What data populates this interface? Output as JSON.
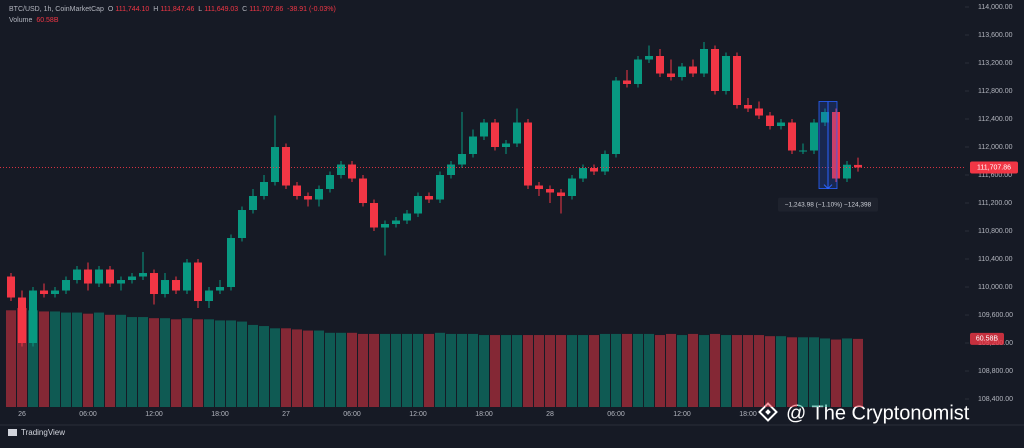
{
  "chart_data": {
    "type": "candlestick",
    "header": {
      "symbol": "BTC/USD, 1h, CoinMarketCap",
      "ohlc": [
        {
          "key": "O",
          "value": "111,744.10"
        },
        {
          "key": "H",
          "value": "111,847.46"
        },
        {
          "key": "L",
          "value": "111,649.03"
        },
        {
          "key": "C",
          "value": "111,707.86"
        }
      ],
      "change": "-38.91 (-0.03%)",
      "volume_key": "Volume",
      "volume_value": "60.58B"
    },
    "categories": [
      null,
      "26",
      null,
      null,
      null,
      null,
      null,
      "06:00",
      null,
      null,
      null,
      null,
      null,
      "12:00",
      null,
      null,
      null,
      null,
      null,
      "18:00",
      null,
      null,
      null,
      null,
      null,
      "27",
      null,
      null,
      null,
      null,
      null,
      "06:00",
      null,
      null,
      null,
      null,
      null,
      "12:00",
      null,
      null,
      null,
      null,
      null,
      "18:00",
      null,
      null,
      null,
      null,
      null,
      "28",
      null,
      null,
      null,
      null,
      null,
      "06:00",
      null,
      null,
      null,
      null,
      null,
      "12:00",
      null,
      null,
      null,
      null,
      null,
      "18:00",
      null,
      null,
      null,
      null,
      null,
      null,
      null,
      null,
      null,
      null
    ],
    "open": [
      110150,
      109850,
      109200,
      109950,
      109900,
      109950,
      110100,
      110250,
      110050,
      110250,
      110050,
      110100,
      110150,
      110200,
      109900,
      110100,
      109950,
      110350,
      109800,
      109950,
      110000,
      110700,
      111100,
      111300,
      111500,
      112000,
      111450,
      111300,
      111250,
      111400,
      111600,
      111750,
      111550,
      111200,
      110850,
      110900,
      110950,
      111050,
      111300,
      111250,
      111600,
      111750,
      111900,
      112150,
      112350,
      112000,
      112050,
      112350,
      111450,
      111400,
      111350,
      111300,
      111550,
      111700,
      111650,
      111900,
      112950,
      112900,
      113250,
      113300,
      113050,
      113000,
      113150,
      113050,
      113400,
      112800,
      113300,
      112600,
      112550,
      112450,
      112300,
      112350,
      111950,
      111950,
      112350,
      112500,
      111550,
      111744.1
    ],
    "high": [
      110200,
      109950,
      110000,
      110050,
      110000,
      110150,
      110300,
      110350,
      110300,
      110300,
      110150,
      110200,
      110500,
      110250,
      110200,
      110150,
      110400,
      110400,
      110000,
      110100,
      110750,
      111150,
      111400,
      111600,
      112450,
      112050,
      111500,
      111350,
      111450,
      111650,
      111800,
      111800,
      111600,
      111250,
      110950,
      111000,
      111100,
      111350,
      111350,
      111650,
      111800,
      112500,
      112250,
      112400,
      112400,
      112100,
      112550,
      112400,
      111500,
      111450,
      111400,
      111600,
      111750,
      111750,
      111950,
      113000,
      113100,
      113300,
      113450,
      113400,
      113250,
      113200,
      113250,
      113500,
      113450,
      113350,
      113350,
      112700,
      112650,
      112500,
      112400,
      112400,
      112050,
      112400,
      112550,
      112550,
      111800,
      111847.46
    ],
    "low": [
      109800,
      109150,
      109150,
      109850,
      109850,
      109900,
      110050,
      109950,
      110000,
      110000,
      109950,
      110050,
      110100,
      109750,
      109850,
      109900,
      109900,
      109700,
      109700,
      109900,
      109950,
      110650,
      111050,
      111250,
      111450,
      111400,
      111250,
      111150,
      111150,
      111350,
      111550,
      111500,
      111150,
      110800,
      110450,
      110850,
      110900,
      111000,
      111200,
      111200,
      111550,
      111700,
      111850,
      112100,
      111950,
      111900,
      112000,
      111400,
      111300,
      111200,
      111050,
      111250,
      111500,
      111600,
      111600,
      111850,
      112850,
      112850,
      113200,
      113000,
      112950,
      112950,
      113000,
      113000,
      112750,
      112750,
      112550,
      112500,
      112400,
      112250,
      112250,
      111900,
      111900,
      111900,
      112300,
      111500,
      111500,
      111649.03
    ],
    "close": [
      109850,
      109200,
      109950,
      109900,
      109950,
      110100,
      110250,
      110050,
      110250,
      110050,
      110100,
      110150,
      110200,
      109900,
      110100,
      109950,
      110350,
      109800,
      109950,
      110000,
      110700,
      111100,
      111300,
      111500,
      112000,
      111450,
      111300,
      111250,
      111400,
      111600,
      111750,
      111550,
      111200,
      110850,
      110900,
      110950,
      111050,
      111300,
      111250,
      111600,
      111750,
      111900,
      112150,
      112350,
      112000,
      112050,
      112350,
      111450,
      111400,
      111350,
      111300,
      111550,
      111700,
      111650,
      111900,
      112950,
      112900,
      113250,
      113300,
      113050,
      113000,
      113150,
      113050,
      113400,
      112800,
      113300,
      112600,
      112550,
      112450,
      112300,
      112350,
      111950,
      111950,
      112350,
      112500,
      111550,
      111746.77,
      111707.86
    ],
    "volume": [
      86,
      88,
      86,
      85,
      85,
      84,
      84,
      83,
      84,
      82,
      82,
      80,
      80,
      79,
      79,
      78,
      79,
      78,
      78,
      77,
      77,
      76,
      73,
      72,
      70,
      70,
      69,
      68,
      68,
      66,
      66,
      66,
      65,
      65,
      65,
      65,
      65,
      65,
      65,
      66,
      65,
      65,
      65,
      64,
      64,
      64,
      64,
      64,
      64,
      64,
      64,
      64,
      64,
      64,
      65,
      65,
      65,
      65,
      65,
      64,
      65,
      64,
      65,
      64,
      65,
      64,
      64,
      64,
      64,
      63,
      63,
      62,
      62,
      62,
      61,
      60,
      61,
      60.58
    ],
    "last_price_label": "111,707.86",
    "last_volume_label": "60.58B",
    "up_color": "#089981",
    "down_color": "#f23645",
    "ylim": [
      108286,
      114100
    ],
    "yticks": [
      {
        "value": 108400,
        "label": "108,400.00"
      },
      {
        "value": 108800,
        "label": "108,800.00"
      },
      {
        "value": 109200,
        "label": "109,200.00"
      },
      {
        "value": 109600,
        "label": "109,600.00"
      },
      {
        "value": 110000,
        "label": "110,000.00"
      },
      {
        "value": 110400,
        "label": "110,400.00"
      },
      {
        "value": 110800,
        "label": "110,800.00"
      },
      {
        "value": 111200,
        "label": "111,200.00"
      },
      {
        "value": 111600,
        "label": "111,600.00"
      },
      {
        "value": 112000,
        "label": "112,000.00"
      },
      {
        "value": 112400,
        "label": "112,400.00"
      },
      {
        "value": 112800,
        "label": "112,800.00"
      },
      {
        "value": 113200,
        "label": "113,200.00"
      },
      {
        "value": 113600,
        "label": "113,600.00"
      },
      {
        "value": 114000,
        "label": "114,000.00"
      }
    ],
    "volume_ylim": [
      0,
      362
    ],
    "grid": false,
    "measure": {
      "from": 112650,
      "to": 111406.02,
      "label": "−1,243.98 (−1.10%) −124,398"
    },
    "watermark": "@ The Cryptonomist",
    "footer": "TradingView"
  }
}
